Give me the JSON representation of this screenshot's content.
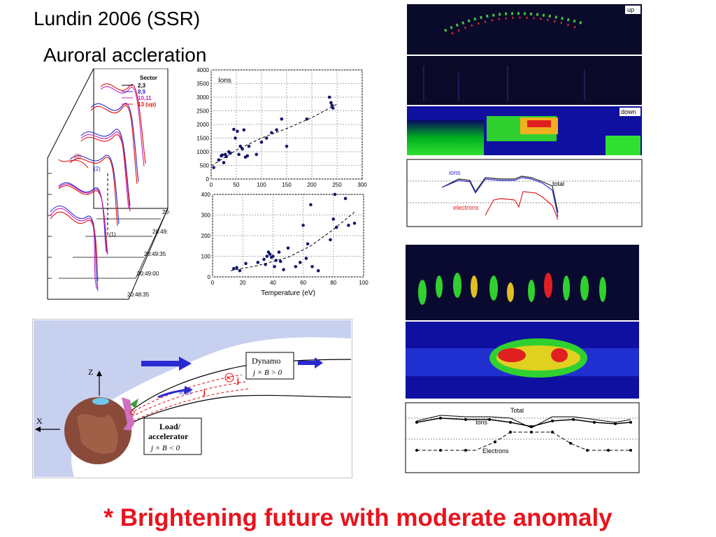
{
  "slide": {
    "title": "Lundin 2006 (SSR)",
    "subtitle": "Auroral accleration",
    "footer": "* Brightening future with moderate anomaly",
    "footer_color": "#e8141e"
  },
  "stack_plot": {
    "legend_title": "Sector",
    "legend": [
      {
        "label": "2,3",
        "color": "#000000"
      },
      {
        "label": "8,9",
        "color": "#2a2ad0"
      },
      {
        "label": "10,11",
        "color": "#c020c0"
      },
      {
        "label": "13 (up)",
        "color": "#e01010"
      }
    ],
    "times": [
      "20:48:35",
      "20:49:00",
      "20:49:35",
      "20:49:",
      "20:"
    ],
    "markers": [
      "(1)",
      "(2)",
      "(3)"
    ]
  },
  "chart_data": [
    {
      "type": "scatter",
      "annotation": "Ions",
      "xlabel": "",
      "ylabel": "",
      "xlim": [
        0,
        300
      ],
      "ylim": [
        0,
        4000
      ],
      "xticks": [
        0,
        50,
        100,
        150,
        200,
        250,
        300
      ],
      "yticks": [
        0,
        500,
        1000,
        1500,
        2000,
        2500,
        3000,
        3500,
        4000
      ],
      "grid": true,
      "points": [
        [
          5,
          420
        ],
        [
          15,
          700
        ],
        [
          20,
          850
        ],
        [
          22,
          880
        ],
        [
          25,
          600
        ],
        [
          28,
          900
        ],
        [
          30,
          820
        ],
        [
          35,
          1000
        ],
        [
          38,
          950
        ],
        [
          45,
          1820
        ],
        [
          48,
          1500
        ],
        [
          52,
          1750
        ],
        [
          55,
          900
        ],
        [
          58,
          1200
        ],
        [
          62,
          1100
        ],
        [
          65,
          1800
        ],
        [
          68,
          800
        ],
        [
          72,
          850
        ],
        [
          75,
          1200
        ],
        [
          90,
          900
        ],
        [
          100,
          1350
        ],
        [
          110,
          1500
        ],
        [
          120,
          1700
        ],
        [
          130,
          1800
        ],
        [
          140,
          2200
        ],
        [
          150,
          1200
        ],
        [
          190,
          2200
        ],
        [
          235,
          3000
        ],
        [
          238,
          2800
        ],
        [
          240,
          2700
        ],
        [
          242,
          2600
        ]
      ],
      "trend": [
        [
          0,
          480
        ],
        [
          50,
          1060
        ],
        [
          100,
          1500
        ],
        [
          150,
          1850
        ],
        [
          200,
          2250
        ],
        [
          250,
          2750
        ]
      ]
    },
    {
      "type": "scatter",
      "xlabel": "Temperature (eV)",
      "ylabel": "",
      "xlim": [
        0,
        100
      ],
      "ylim": [
        0,
        400
      ],
      "xticks": [
        0,
        20,
        40,
        60,
        80,
        100
      ],
      "yticks": [
        0,
        100,
        200,
        300,
        400
      ],
      "grid": true,
      "points": [
        [
          14,
          40
        ],
        [
          16,
          45
        ],
        [
          18,
          30
        ],
        [
          22,
          65
        ],
        [
          30,
          70
        ],
        [
          34,
          85
        ],
        [
          35,
          60
        ],
        [
          36,
          100
        ],
        [
          37,
          120
        ],
        [
          38,
          110
        ],
        [
          39,
          95
        ],
        [
          40,
          100
        ],
        [
          41,
          50
        ],
        [
          42,
          80
        ],
        [
          44,
          120
        ],
        [
          45,
          75
        ],
        [
          47,
          35
        ],
        [
          50,
          140
        ],
        [
          55,
          50
        ],
        [
          58,
          70
        ],
        [
          60,
          250
        ],
        [
          62,
          90
        ],
        [
          63,
          160
        ],
        [
          65,
          350
        ],
        [
          66,
          50
        ],
        [
          70,
          30
        ],
        [
          78,
          180
        ],
        [
          80,
          280
        ],
        [
          81,
          400
        ],
        [
          82,
          240
        ],
        [
          88,
          380
        ],
        [
          90,
          250
        ],
        [
          94,
          260
        ]
      ],
      "trend": [
        [
          12,
          30
        ],
        [
          30,
          55
        ],
        [
          50,
          95
        ],
        [
          65,
          150
        ],
        [
          80,
          230
        ],
        [
          95,
          320
        ]
      ]
    }
  ],
  "diagram": {
    "z_label": "Z",
    "x_label": "X",
    "dynamo_title": "Dynamo",
    "dynamo_eq": "j × B > 0",
    "load_title": "Load/",
    "load_title2": "accelerator",
    "load_eq": "j × B < 0",
    "ions_label": "ions",
    "j_label": "j",
    "j_label2": "j"
  },
  "spectrograms": {
    "label_up": "up",
    "label_down": "down",
    "legend_ions": "ions",
    "legend_total": "total",
    "legend_electrons": "electrons",
    "legend2_total": "Total",
    "legend2_ions": "Ions",
    "legend2_electrons": "Electrons"
  }
}
